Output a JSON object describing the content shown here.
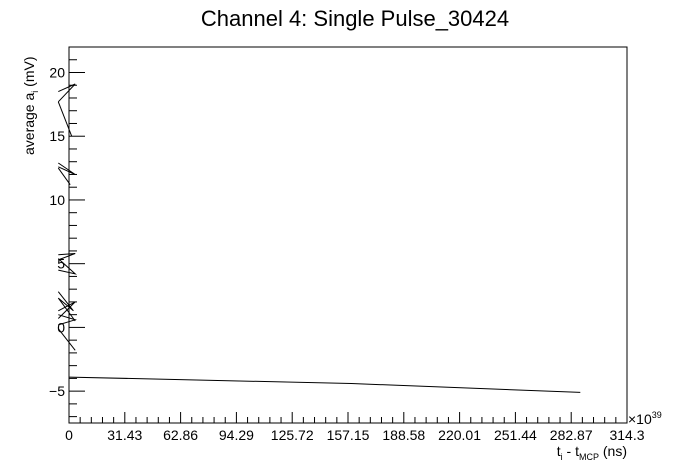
{
  "chart_data": {
    "type": "line",
    "title": "Channel 4: Single Pulse_30424",
    "xlabel": {
      "main": "t",
      "sub1": "i",
      "mid": " - t",
      "sub2": "MCP",
      "unit": " (ns)"
    },
    "ylabel": {
      "main": "average a",
      "sub": "i",
      "unit": " (mV)"
    },
    "x_exponent_label": "×10",
    "x_exponent_power": "39",
    "xlim": [
      0,
      314.3
    ],
    "ylim": [
      -7.5,
      22
    ],
    "xticks": [
      "0",
      "31.43",
      "62.86",
      "94.29",
      "125.72",
      "157.15",
      "188.58",
      "220.01",
      "251.44",
      "282.87",
      "314.3"
    ],
    "yticks": [
      -5,
      0,
      5,
      10,
      15,
      20
    ],
    "series": [
      {
        "x": [
          0,
          159,
          288
        ],
        "y": [
          -3.9,
          -4.4,
          -5.1
        ]
      },
      {
        "x": [
          -6,
          3.5,
          -6
        ],
        "y": [
          18.5,
          19.1,
          17.7
        ]
      },
      {
        "x": [
          -6,
          1.5
        ],
        "y": [
          17.7,
          15.0
        ]
      },
      {
        "x": [
          -6,
          3.5,
          -6
        ],
        "y": [
          12.9,
          12.0,
          12.6
        ]
      },
      {
        "x": [
          -6,
          0.7
        ],
        "y": [
          12.5,
          11.2
        ]
      },
      {
        "x": [
          -6,
          3.5,
          -6
        ],
        "y": [
          5.7,
          5.8,
          5.3
        ]
      },
      {
        "x": [
          -6,
          3.5,
          -6
        ],
        "y": [
          5.4,
          4.2,
          4.5
        ]
      },
      {
        "x": [
          -6,
          2.5,
          -6,
          3.5
        ],
        "y": [
          2.8,
          1.3,
          2.3,
          0.5
        ]
      },
      {
        "x": [
          -6,
          3.5,
          -6
        ],
        "y": [
          1.3,
          2.0,
          0.7
        ]
      },
      {
        "x": [
          -6,
          3.5,
          -6
        ],
        "y": [
          1.0,
          0.6,
          0.2
        ]
      },
      {
        "x": [
          -6,
          3.5
        ],
        "y": [
          -0.1,
          -1.8
        ]
      }
    ]
  }
}
